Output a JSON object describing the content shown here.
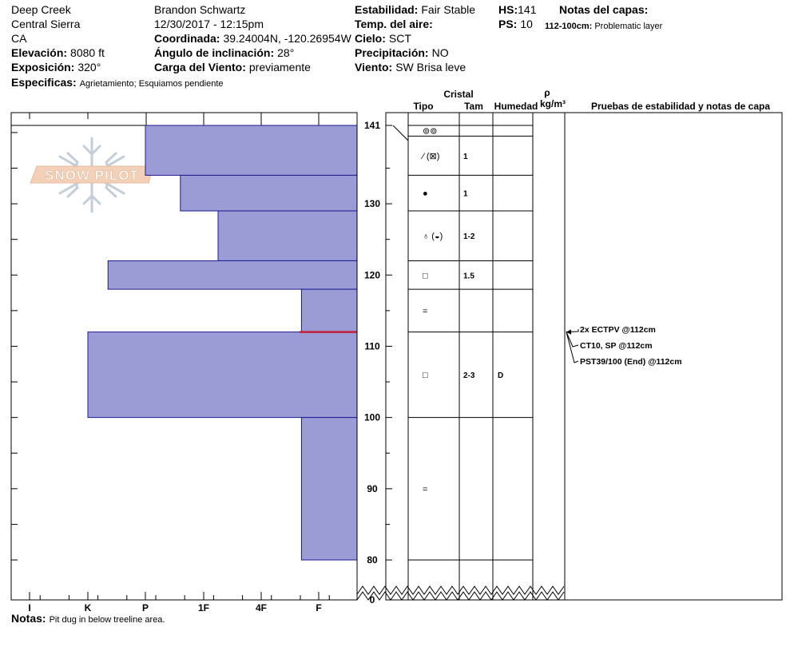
{
  "header": {
    "site": "Deep Creek",
    "region": "Central Sierra",
    "state": "CA",
    "elevation_label": "Elevación:",
    "elevation_value": "8080 ft",
    "aspect_label": "Exposición:",
    "aspect_value": "320°",
    "specifics_label": "Especificas:",
    "specifics_value": "Agrietamiento; Esquiamos pendiente",
    "observer": "Brandon Schwartz",
    "datetime": "12/30/2017 - 12:15pm",
    "coord_label": "Coordinada:",
    "coord_value": "39.24004N, -120.26954W",
    "slope_label": "Ángulo de inclinación:",
    "slope_value": "28°",
    "wind_load_label": "Carga del Viento:",
    "wind_load_value": "previamente",
    "stability_label": "Estabilidad:",
    "stability_value": "Fair Stable",
    "air_temp_label": "Temp. del aire:",
    "sky_label": "Cielo:",
    "sky_value": "SCT",
    "precip_label": "Precipitación:",
    "precip_value": "NO",
    "wind_label": "Viento:",
    "wind_value": "SW Brisa leve",
    "hs_label": "HS:",
    "hs_value": "141",
    "ps_label": "PS:",
    "ps_value": "10",
    "layer_notes_label": "Notas del capas:",
    "layer_note_depth": "112-100cm:",
    "layer_note_text": "Problematic layer"
  },
  "notes": {
    "label": "Notas:",
    "text": "Pit dug in below treeline area."
  },
  "logo": {
    "text": "SNOW PILOT"
  },
  "columns": {
    "crystal": "Cristal",
    "type": "Tipo",
    "size": "Tam",
    "moisture": "Humedad",
    "rho": "ρ",
    "density_unit": "kg/m³",
    "tests": "Pruebas de estabilidad y notas de capa"
  },
  "colors": {
    "hardness_fill": "#9b9bd6",
    "hardness_stroke": "#1b1b8f",
    "weak_layer": "#c0203a",
    "grid": "#000000"
  },
  "chart_data": {
    "type": "bar",
    "orientation": "horizontal",
    "description_axis_x": "hand hardness",
    "hardness_ticks": [
      "I",
      "K",
      "P",
      "1F",
      "4F",
      "F"
    ],
    "height_ticks": [
      141,
      130,
      120,
      110,
      100,
      90,
      80,
      0
    ],
    "ylim": [
      80,
      141
    ],
    "axis_break": true,
    "layers": [
      {
        "top": 141,
        "bottom": 134,
        "hardness_index": 2.0
      },
      {
        "top": 134,
        "bottom": 129,
        "hardness_index": 2.6
      },
      {
        "top": 129,
        "bottom": 122,
        "hardness_index": 3.25
      },
      {
        "top": 122,
        "bottom": 118,
        "hardness_index": 1.35
      },
      {
        "top": 118,
        "bottom": 112,
        "hardness_index": 4.7
      },
      {
        "top": 112,
        "bottom": 100,
        "hardness_index": 1.0
      },
      {
        "top": 100,
        "bottom": 80,
        "hardness_index": 4.7
      }
    ],
    "weak_layer_height": 112,
    "grain_rows": [
      {
        "top": 141,
        "bottom": 139.5,
        "type": "⊚⊚",
        "size": "",
        "moisture": ""
      },
      {
        "top": 139.5,
        "bottom": 134,
        "type": "⁄ (⊠)",
        "size": "1",
        "moisture": ""
      },
      {
        "top": 134,
        "bottom": 129,
        "type": "●",
        "size": "1",
        "moisture": ""
      },
      {
        "top": 129,
        "bottom": 122,
        "type": "♁ (◒)",
        "size": "1-2",
        "moisture": ""
      },
      {
        "top": 122,
        "bottom": 118,
        "type": "□",
        "size": "1.5",
        "moisture": ""
      },
      {
        "top": 118,
        "bottom": 112,
        "type": "=",
        "size": "",
        "moisture": ""
      },
      {
        "top": 112,
        "bottom": 100,
        "type": "□",
        "size": "2-3",
        "moisture": "D"
      },
      {
        "top": 100,
        "bottom": 80,
        "type": "=",
        "size": "",
        "moisture": ""
      }
    ],
    "tests": [
      {
        "label": "2x ECTPV @112cm"
      },
      {
        "label": "CT10, SP @112cm"
      },
      {
        "label": "PST39/100 (End) @112cm"
      }
    ]
  }
}
